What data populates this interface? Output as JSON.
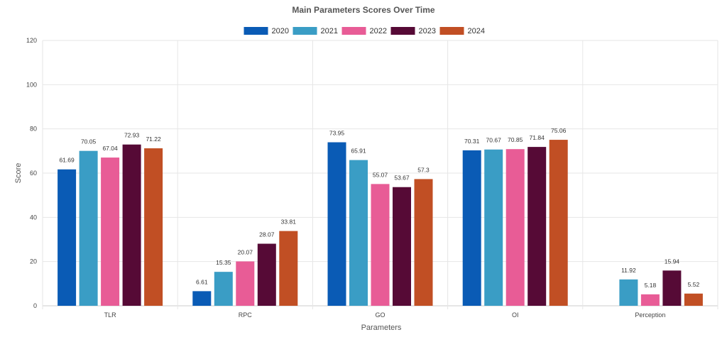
{
  "chart_data": {
    "type": "bar",
    "title": "Main Parameters Scores Over Time",
    "xlabel": "Parameters",
    "ylabel": "Score",
    "ylim": [
      0,
      120
    ],
    "yticks": [
      0,
      20,
      40,
      60,
      80,
      100,
      120
    ],
    "grid": true,
    "legend_position": "top",
    "categories": [
      "TLR",
      "RPC",
      "GO",
      "OI",
      "Perception"
    ],
    "series": [
      {
        "name": "2020",
        "color": "#0a5bb5",
        "values": [
          61.69,
          6.61,
          73.95,
          70.31,
          null
        ],
        "labels": [
          "61.69",
          "6.61",
          "73.95",
          "70.31",
          ""
        ]
      },
      {
        "name": "2021",
        "color": "#3a9dc5",
        "values": [
          70.05,
          15.35,
          65.91,
          70.67,
          11.92
        ],
        "labels": [
          "70.05",
          "15.35",
          "65.91",
          "70.67",
          "11.92"
        ]
      },
      {
        "name": "2022",
        "color": "#e85c96",
        "values": [
          67.04,
          20.07,
          55.07,
          70.85,
          5.18
        ],
        "labels": [
          "67.04",
          "20.07",
          "55.07",
          "70.85",
          "5.18"
        ]
      },
      {
        "name": "2023",
        "color": "#560a36",
        "values": [
          72.93,
          28.07,
          53.67,
          71.84,
          15.94
        ],
        "labels": [
          "72.93",
          "28.07",
          "53.67",
          "71.84",
          "15.94"
        ]
      },
      {
        "name": "2024",
        "color": "#c14f24",
        "values": [
          71.22,
          33.81,
          57.3,
          75.06,
          5.52
        ],
        "labels": [
          "71.22",
          "33.81",
          "57.3",
          "75.06",
          "5.52"
        ]
      }
    ]
  }
}
